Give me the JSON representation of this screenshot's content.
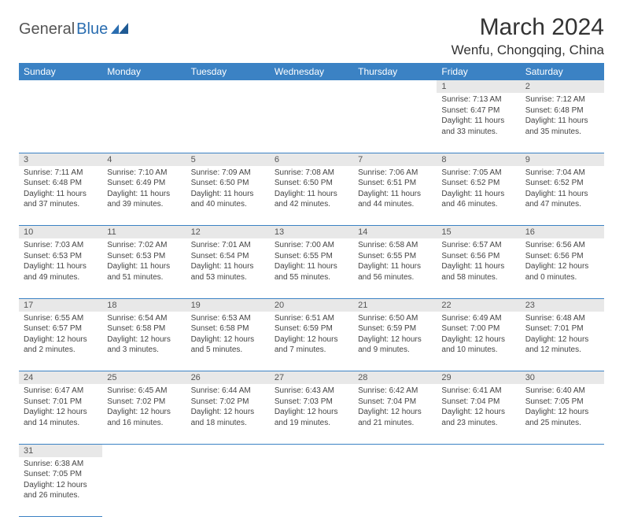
{
  "logo": {
    "text1": "General",
    "text2": "Blue"
  },
  "title": "March 2024",
  "location": "Wenfu, Chongqing, China",
  "colors": {
    "header_bg": "#3b82c4",
    "header_fg": "#ffffff",
    "daynum_bg": "#e8e8e8",
    "border": "#3b82c4",
    "logo_blue": "#2a6db0"
  },
  "weekdays": [
    "Sunday",
    "Monday",
    "Tuesday",
    "Wednesday",
    "Thursday",
    "Friday",
    "Saturday"
  ],
  "weeks": [
    {
      "nums": [
        "",
        "",
        "",
        "",
        "",
        "1",
        "2"
      ],
      "cells": [
        null,
        null,
        null,
        null,
        null,
        {
          "sr": "Sunrise: 7:13 AM",
          "ss": "Sunset: 6:47 PM",
          "d1": "Daylight: 11 hours",
          "d2": "and 33 minutes."
        },
        {
          "sr": "Sunrise: 7:12 AM",
          "ss": "Sunset: 6:48 PM",
          "d1": "Daylight: 11 hours",
          "d2": "and 35 minutes."
        }
      ]
    },
    {
      "nums": [
        "3",
        "4",
        "5",
        "6",
        "7",
        "8",
        "9"
      ],
      "cells": [
        {
          "sr": "Sunrise: 7:11 AM",
          "ss": "Sunset: 6:48 PM",
          "d1": "Daylight: 11 hours",
          "d2": "and 37 minutes."
        },
        {
          "sr": "Sunrise: 7:10 AM",
          "ss": "Sunset: 6:49 PM",
          "d1": "Daylight: 11 hours",
          "d2": "and 39 minutes."
        },
        {
          "sr": "Sunrise: 7:09 AM",
          "ss": "Sunset: 6:50 PM",
          "d1": "Daylight: 11 hours",
          "d2": "and 40 minutes."
        },
        {
          "sr": "Sunrise: 7:08 AM",
          "ss": "Sunset: 6:50 PM",
          "d1": "Daylight: 11 hours",
          "d2": "and 42 minutes."
        },
        {
          "sr": "Sunrise: 7:06 AM",
          "ss": "Sunset: 6:51 PM",
          "d1": "Daylight: 11 hours",
          "d2": "and 44 minutes."
        },
        {
          "sr": "Sunrise: 7:05 AM",
          "ss": "Sunset: 6:52 PM",
          "d1": "Daylight: 11 hours",
          "d2": "and 46 minutes."
        },
        {
          "sr": "Sunrise: 7:04 AM",
          "ss": "Sunset: 6:52 PM",
          "d1": "Daylight: 11 hours",
          "d2": "and 47 minutes."
        }
      ]
    },
    {
      "nums": [
        "10",
        "11",
        "12",
        "13",
        "14",
        "15",
        "16"
      ],
      "cells": [
        {
          "sr": "Sunrise: 7:03 AM",
          "ss": "Sunset: 6:53 PM",
          "d1": "Daylight: 11 hours",
          "d2": "and 49 minutes."
        },
        {
          "sr": "Sunrise: 7:02 AM",
          "ss": "Sunset: 6:53 PM",
          "d1": "Daylight: 11 hours",
          "d2": "and 51 minutes."
        },
        {
          "sr": "Sunrise: 7:01 AM",
          "ss": "Sunset: 6:54 PM",
          "d1": "Daylight: 11 hours",
          "d2": "and 53 minutes."
        },
        {
          "sr": "Sunrise: 7:00 AM",
          "ss": "Sunset: 6:55 PM",
          "d1": "Daylight: 11 hours",
          "d2": "and 55 minutes."
        },
        {
          "sr": "Sunrise: 6:58 AM",
          "ss": "Sunset: 6:55 PM",
          "d1": "Daylight: 11 hours",
          "d2": "and 56 minutes."
        },
        {
          "sr": "Sunrise: 6:57 AM",
          "ss": "Sunset: 6:56 PM",
          "d1": "Daylight: 11 hours",
          "d2": "and 58 minutes."
        },
        {
          "sr": "Sunrise: 6:56 AM",
          "ss": "Sunset: 6:56 PM",
          "d1": "Daylight: 12 hours",
          "d2": "and 0 minutes."
        }
      ]
    },
    {
      "nums": [
        "17",
        "18",
        "19",
        "20",
        "21",
        "22",
        "23"
      ],
      "cells": [
        {
          "sr": "Sunrise: 6:55 AM",
          "ss": "Sunset: 6:57 PM",
          "d1": "Daylight: 12 hours",
          "d2": "and 2 minutes."
        },
        {
          "sr": "Sunrise: 6:54 AM",
          "ss": "Sunset: 6:58 PM",
          "d1": "Daylight: 12 hours",
          "d2": "and 3 minutes."
        },
        {
          "sr": "Sunrise: 6:53 AM",
          "ss": "Sunset: 6:58 PM",
          "d1": "Daylight: 12 hours",
          "d2": "and 5 minutes."
        },
        {
          "sr": "Sunrise: 6:51 AM",
          "ss": "Sunset: 6:59 PM",
          "d1": "Daylight: 12 hours",
          "d2": "and 7 minutes."
        },
        {
          "sr": "Sunrise: 6:50 AM",
          "ss": "Sunset: 6:59 PM",
          "d1": "Daylight: 12 hours",
          "d2": "and 9 minutes."
        },
        {
          "sr": "Sunrise: 6:49 AM",
          "ss": "Sunset: 7:00 PM",
          "d1": "Daylight: 12 hours",
          "d2": "and 10 minutes."
        },
        {
          "sr": "Sunrise: 6:48 AM",
          "ss": "Sunset: 7:01 PM",
          "d1": "Daylight: 12 hours",
          "d2": "and 12 minutes."
        }
      ]
    },
    {
      "nums": [
        "24",
        "25",
        "26",
        "27",
        "28",
        "29",
        "30"
      ],
      "cells": [
        {
          "sr": "Sunrise: 6:47 AM",
          "ss": "Sunset: 7:01 PM",
          "d1": "Daylight: 12 hours",
          "d2": "and 14 minutes."
        },
        {
          "sr": "Sunrise: 6:45 AM",
          "ss": "Sunset: 7:02 PM",
          "d1": "Daylight: 12 hours",
          "d2": "and 16 minutes."
        },
        {
          "sr": "Sunrise: 6:44 AM",
          "ss": "Sunset: 7:02 PM",
          "d1": "Daylight: 12 hours",
          "d2": "and 18 minutes."
        },
        {
          "sr": "Sunrise: 6:43 AM",
          "ss": "Sunset: 7:03 PM",
          "d1": "Daylight: 12 hours",
          "d2": "and 19 minutes."
        },
        {
          "sr": "Sunrise: 6:42 AM",
          "ss": "Sunset: 7:04 PM",
          "d1": "Daylight: 12 hours",
          "d2": "and 21 minutes."
        },
        {
          "sr": "Sunrise: 6:41 AM",
          "ss": "Sunset: 7:04 PM",
          "d1": "Daylight: 12 hours",
          "d2": "and 23 minutes."
        },
        {
          "sr": "Sunrise: 6:40 AM",
          "ss": "Sunset: 7:05 PM",
          "d1": "Daylight: 12 hours",
          "d2": "and 25 minutes."
        }
      ]
    },
    {
      "nums": [
        "31",
        "",
        "",
        "",
        "",
        "",
        ""
      ],
      "cells": [
        {
          "sr": "Sunrise: 6:38 AM",
          "ss": "Sunset: 7:05 PM",
          "d1": "Daylight: 12 hours",
          "d2": "and 26 minutes."
        },
        null,
        null,
        null,
        null,
        null,
        null
      ]
    }
  ]
}
